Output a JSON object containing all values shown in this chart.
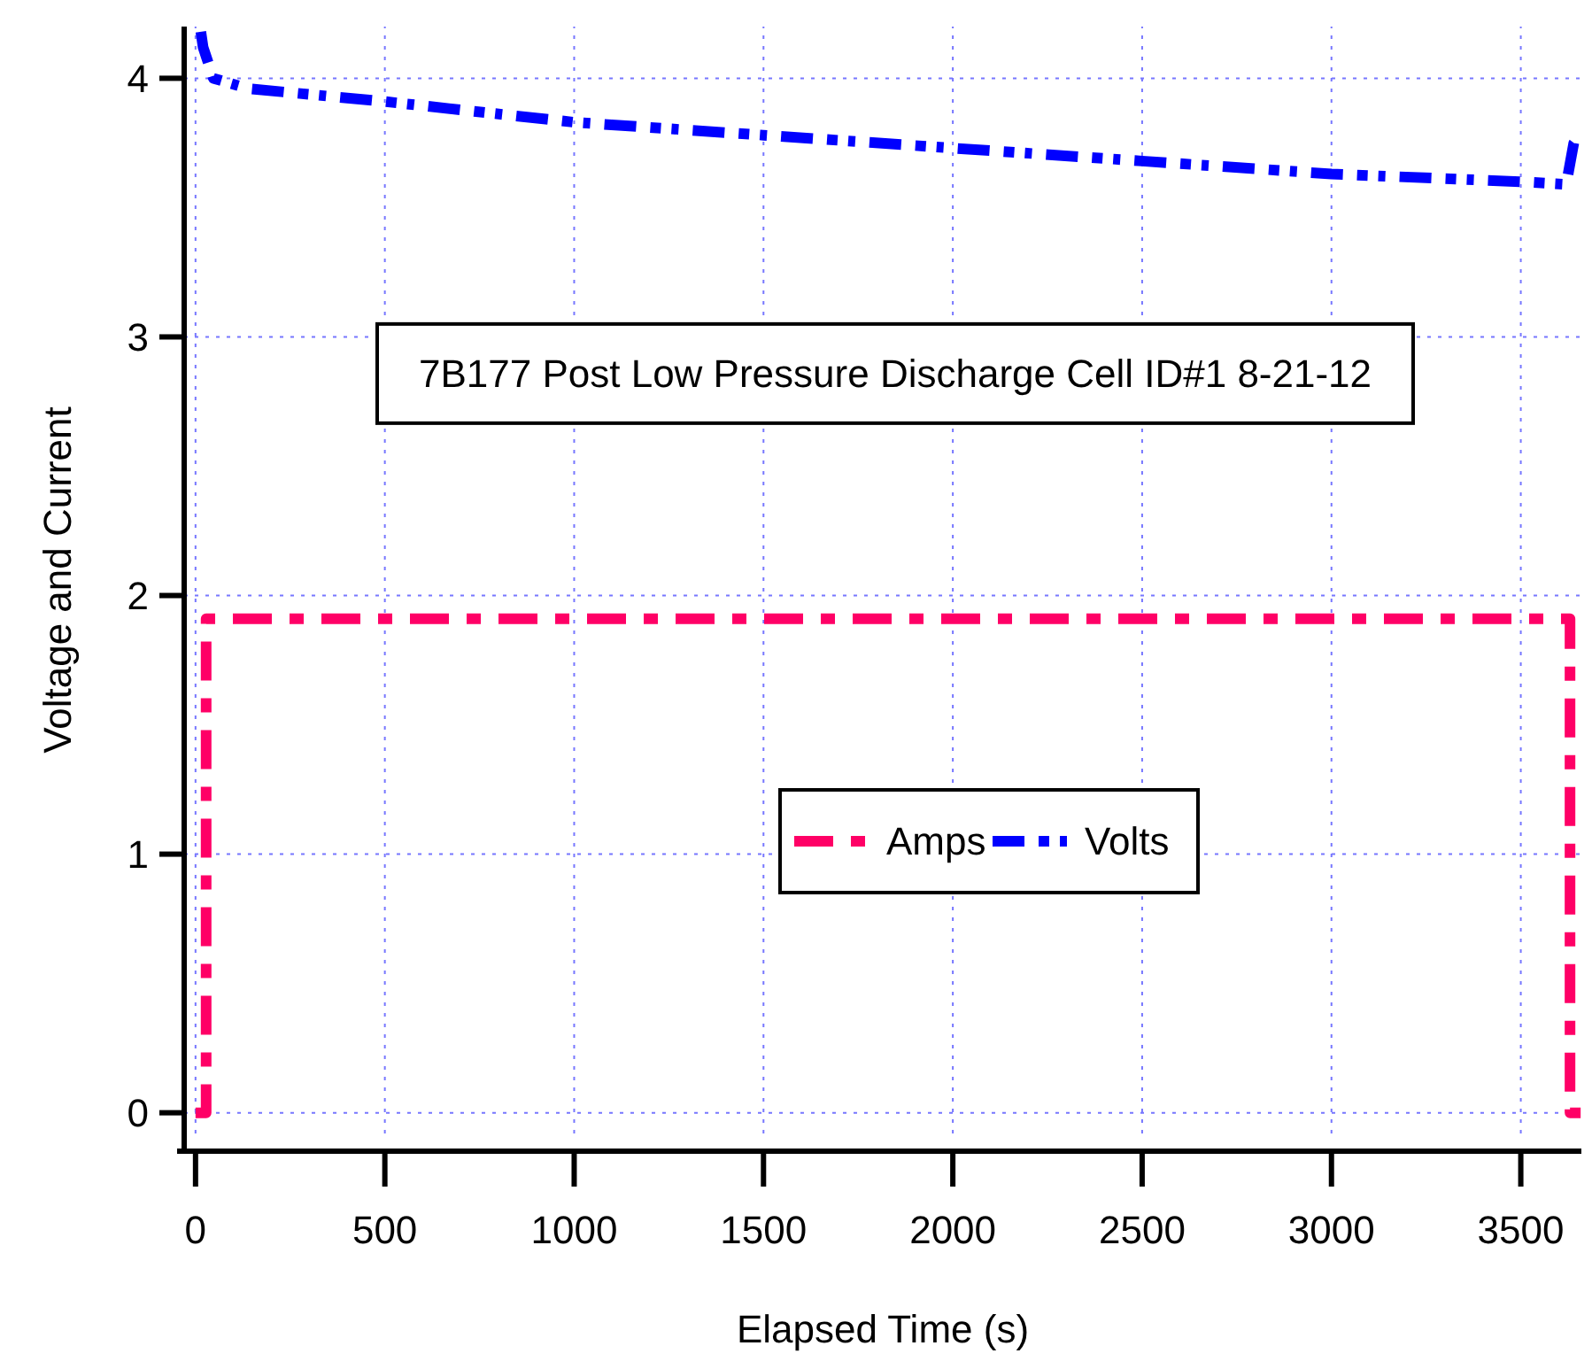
{
  "chart_data": {
    "type": "line",
    "title": "7B177 Post Low Pressure Discharge Cell ID#1 8-21-12",
    "xlabel": "Elapsed Time (s)",
    "ylabel": "Voltage and Current",
    "xlim": [
      -30,
      3660
    ],
    "ylim": [
      -0.08,
      4.2
    ],
    "xticks": [
      0,
      500,
      1000,
      1500,
      2000,
      2500,
      3000,
      3500
    ],
    "yticks": [
      0,
      1,
      2,
      3,
      4
    ],
    "grid": true,
    "legend": "center",
    "line_style": "dashed",
    "marker": "none",
    "series": [
      {
        "name": "Amps",
        "color": "#ff0066",
        "x": [
          0,
          28,
          28,
          3630,
          3630,
          3660
        ],
        "values": [
          0,
          0,
          1.91,
          1.91,
          0,
          0
        ]
      },
      {
        "name": "Volts",
        "color": "#0000ff",
        "x": [
          14,
          20,
          47,
          140,
          500,
          1000,
          1500,
          2000,
          2500,
          3000,
          3500,
          3620,
          3640,
          3660
        ],
        "values": [
          4.18,
          4.12,
          4.0,
          3.96,
          3.91,
          3.83,
          3.78,
          3.73,
          3.68,
          3.63,
          3.6,
          3.59,
          3.75,
          3.79
        ]
      }
    ]
  }
}
